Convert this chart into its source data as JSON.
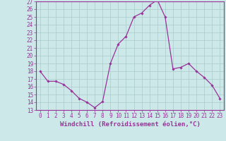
{
  "hours": [
    0,
    1,
    2,
    3,
    4,
    5,
    6,
    7,
    8,
    9,
    10,
    11,
    12,
    13,
    14,
    15,
    16,
    17,
    18,
    19,
    20,
    21,
    22,
    23
  ],
  "values": [
    18.0,
    16.7,
    16.7,
    16.3,
    15.5,
    14.5,
    14.0,
    13.3,
    14.1,
    19.0,
    21.5,
    22.5,
    25.0,
    25.5,
    26.5,
    27.2,
    25.0,
    18.3,
    18.5,
    19.0,
    18.0,
    17.2,
    16.2,
    14.5
  ],
  "line_color": "#993399",
  "marker": "D",
  "marker_size": 1.8,
  "bg_color": "#cce8e8",
  "grid_color": "#aacccc",
  "ylim": [
    13,
    27
  ],
  "yticks": [
    13,
    14,
    15,
    16,
    17,
    18,
    19,
    20,
    21,
    22,
    23,
    24,
    25,
    26,
    27
  ],
  "xlabel": "Windchill (Refroidissement éolien,°C)",
  "xlabel_color": "#993399",
  "xlabel_fontsize": 6.5,
  "tick_color": "#993399",
  "tick_fontsize": 5.5,
  "axis_color": "#993399",
  "linewidth": 0.9
}
